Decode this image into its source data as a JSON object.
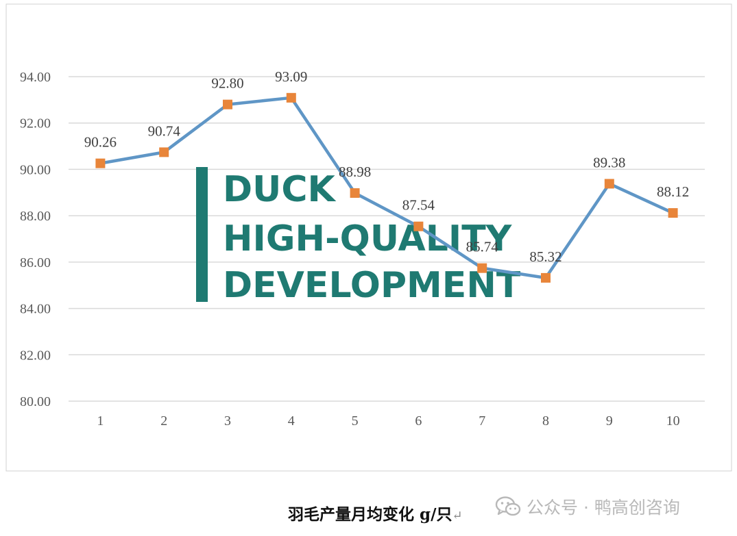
{
  "chart_data": {
    "type": "line",
    "categories": [
      "1",
      "2",
      "3",
      "4",
      "5",
      "6",
      "7",
      "8",
      "9",
      "10"
    ],
    "series": [
      {
        "values": [
          90.26,
          90.74,
          92.8,
          93.09,
          88.98,
          87.54,
          85.74,
          85.32,
          89.38,
          88.12
        ]
      }
    ],
    "data_labels": [
      "90.26",
      "90.74",
      "92.80",
      "93.09",
      "88.98",
      "87.54",
      "85.74",
      "85.32",
      "89.38",
      "88.12"
    ],
    "y_ticks": [
      "80.00",
      "82.00",
      "84.00",
      "86.00",
      "88.00",
      "90.00",
      "92.00",
      "94.00"
    ],
    "ylim": [
      80,
      94
    ],
    "grid": true,
    "line_color": "#5f96c6",
    "marker_color": "#e8853a",
    "marker_shape": "square"
  },
  "watermark": {
    "lines": [
      "DUCK",
      "HIGH-QUALITY",
      "DEVELOPMENT"
    ],
    "color": "#1f7a72"
  },
  "caption": {
    "text": "羽毛产量月均变化 g/只",
    "return_mark": "↵"
  },
  "account": {
    "icon": "wechat-icon",
    "text": "公众号 · 鸭高创咨询"
  }
}
